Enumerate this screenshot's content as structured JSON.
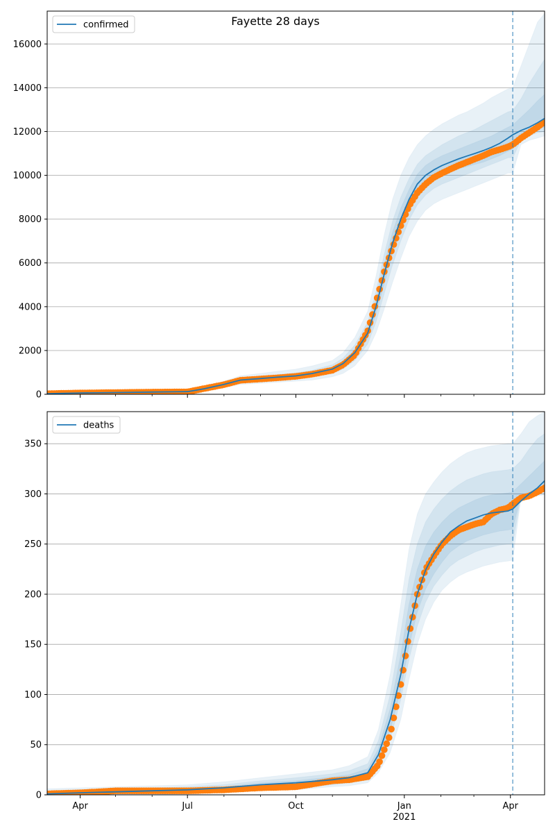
{
  "figure": {
    "title": "Fayette 28 days"
  },
  "colors": {
    "model": "#1f77b4",
    "observed": "#ff7f0e",
    "band": "#1f77b4",
    "grid": "#b0b0b0",
    "vline": "#1f77b4"
  },
  "chart_data": [
    {
      "type": "line",
      "panel": "top",
      "legend": [
        "confirmed"
      ],
      "legend_loc": "upper left",
      "xlim": [
        "2020-03-04",
        "2021-04-30"
      ],
      "ylim": [
        0,
        17500
      ],
      "yticks": [
        0,
        2000,
        4000,
        6000,
        8000,
        10000,
        12000,
        14000,
        16000
      ],
      "grid": "y",
      "vline": "2021-04-03",
      "series": [
        {
          "name": "confirmed",
          "role": "model",
          "x": [
            "2020-03-04",
            "2020-04-01",
            "2020-05-01",
            "2020-06-01",
            "2020-07-01",
            "2020-07-15",
            "2020-08-01",
            "2020-08-15",
            "2020-09-01",
            "2020-09-15",
            "2020-10-01",
            "2020-10-15",
            "2020-11-01",
            "2020-11-10",
            "2020-11-20",
            "2020-12-01",
            "2020-12-08",
            "2020-12-15",
            "2020-12-22",
            "2020-12-29",
            "2021-01-05",
            "2021-01-12",
            "2021-01-19",
            "2021-01-26",
            "2021-02-02",
            "2021-02-09",
            "2021-02-16",
            "2021-02-23",
            "2021-03-02",
            "2021-03-09",
            "2021-03-16",
            "2021-03-23",
            "2021-03-30",
            "2021-04-03",
            "2021-04-10",
            "2021-04-17",
            "2021-04-24",
            "2021-04-30"
          ],
          "y": [
            30,
            60,
            80,
            100,
            120,
            250,
            450,
            650,
            720,
            780,
            840,
            950,
            1150,
            1400,
            1900,
            2800,
            4000,
            5500,
            6900,
            8000,
            8900,
            9600,
            10000,
            10250,
            10450,
            10600,
            10750,
            10880,
            11000,
            11130,
            11280,
            11460,
            11700,
            11850,
            12050,
            12200,
            12400,
            12600
          ]
        },
        {
          "name": "",
          "role": "observed",
          "x": [
            "2020-03-04",
            "2020-04-01",
            "2020-05-01",
            "2020-06-01",
            "2020-07-01",
            "2020-07-15",
            "2020-08-01",
            "2020-08-15",
            "2020-09-01",
            "2020-09-15",
            "2020-10-01",
            "2020-10-15",
            "2020-11-01",
            "2020-11-10",
            "2020-11-20",
            "2020-12-01",
            "2020-12-08",
            "2020-12-15",
            "2020-12-22",
            "2020-12-29",
            "2021-01-05",
            "2021-01-12",
            "2021-01-19",
            "2021-01-26",
            "2021-02-02",
            "2021-02-09",
            "2021-02-16",
            "2021-02-23",
            "2021-03-02",
            "2021-03-09",
            "2021-03-16",
            "2021-03-23",
            "2021-03-30",
            "2021-04-03",
            "2021-04-10",
            "2021-04-17",
            "2021-04-24",
            "2021-04-30"
          ],
          "y": [
            30,
            60,
            80,
            100,
            110,
            260,
            440,
            640,
            700,
            750,
            820,
            920,
            1100,
            1350,
            1800,
            2900,
            4200,
            5600,
            6700,
            7700,
            8600,
            9200,
            9600,
            9900,
            10100,
            10280,
            10450,
            10600,
            10750,
            10900,
            11070,
            11180,
            11300,
            11400,
            11700,
            11950,
            12200,
            12450
          ]
        }
      ],
      "bands": [
        {
          "level": "outer",
          "upper": [
            60,
            90,
            120,
            150,
            180,
            350,
            600,
            850,
            950,
            1050,
            1150,
            1300,
            1550,
            1900,
            2600,
            3800,
            5400,
            7300,
            8900,
            10000,
            10800,
            11400,
            11800,
            12100,
            12350,
            12550,
            12750,
            12900,
            13100,
            13300,
            13550,
            13750,
            13950,
            14000,
            15000,
            16000,
            17000,
            17400
          ],
          "lower": [
            10,
            30,
            50,
            60,
            70,
            160,
            300,
            450,
            500,
            550,
            600,
            650,
            800,
            950,
            1300,
            2000,
            2800,
            3900,
            5100,
            6200,
            7200,
            7900,
            8400,
            8700,
            8900,
            9050,
            9200,
            9350,
            9500,
            9650,
            9800,
            9950,
            10100,
            10100,
            11400,
            11600,
            11700,
            11800
          ]
        },
        {
          "level": "mid",
          "upper": [
            45,
            75,
            100,
            125,
            150,
            300,
            520,
            750,
            830,
            900,
            980,
            1100,
            1350,
            1650,
            2250,
            3300,
            4700,
            6400,
            7900,
            9000,
            9850,
            10500,
            10900,
            11150,
            11400,
            11600,
            11800,
            11950,
            12100,
            12300,
            12500,
            12700,
            12900,
            12950,
            13500,
            14200,
            14800,
            15300
          ],
          "lower": [
            20,
            45,
            60,
            75,
            90,
            200,
            380,
            550,
            610,
            660,
            710,
            800,
            950,
            1150,
            1550,
            2300,
            3300,
            4600,
            5900,
            7000,
            7950,
            8650,
            9100,
            9400,
            9600,
            9750,
            9900,
            10050,
            10200,
            10350,
            10500,
            10650,
            10800,
            10800,
            11600,
            11800,
            11950,
            12000
          ]
        },
        {
          "level": "inner",
          "upper": [
            35,
            65,
            90,
            110,
            135,
            270,
            480,
            700,
            770,
            830,
            900,
            1020,
            1250,
            1520,
            2050,
            3050,
            4350,
            5950,
            7400,
            8500,
            9350,
            10050,
            10450,
            10700,
            10900,
            11050,
            11200,
            11350,
            11500,
            11650,
            11800,
            12000,
            12200,
            12300,
            12650,
            13000,
            13400,
            13700
          ],
          "lower": [
            25,
            55,
            70,
            90,
            105,
            230,
            420,
            600,
            670,
            730,
            780,
            880,
            1050,
            1280,
            1750,
            2550,
            3650,
            5050,
            6400,
            7500,
            8450,
            9150,
            9550,
            9800,
            10000,
            10150,
            10300,
            10400,
            10500,
            10600,
            10750,
            10900,
            11100,
            11200,
            11800,
            11950,
            12100,
            12200
          ]
        }
      ],
      "xticks_major": [
        "2020-04-01",
        "2020-07-01",
        "2020-10-01",
        "2021-01-01",
        "2021-04-01"
      ],
      "xtick_labels": [],
      "xticks_minor": [
        "2020-05-01",
        "2020-06-01",
        "2020-08-01",
        "2020-09-01",
        "2020-11-01",
        "2020-12-01",
        "2021-02-01",
        "2021-03-01"
      ]
    },
    {
      "type": "line",
      "panel": "bottom",
      "legend": [
        "deaths"
      ],
      "legend_loc": "upper left",
      "xlim": [
        "2020-03-04",
        "2021-04-30"
      ],
      "ylim": [
        0,
        382
      ],
      "yticks": [
        0,
        50,
        100,
        150,
        200,
        250,
        300,
        350
      ],
      "grid": "y",
      "vline": "2021-04-03",
      "series": [
        {
          "name": "deaths",
          "role": "model",
          "x": [
            "2020-03-04",
            "2020-04-01",
            "2020-05-01",
            "2020-06-01",
            "2020-07-01",
            "2020-08-01",
            "2020-09-01",
            "2020-10-01",
            "2020-11-01",
            "2020-11-15",
            "2020-12-01",
            "2020-12-10",
            "2020-12-20",
            "2020-12-29",
            "2021-01-05",
            "2021-01-12",
            "2021-01-19",
            "2021-01-26",
            "2021-02-02",
            "2021-02-09",
            "2021-02-16",
            "2021-02-23",
            "2021-03-02",
            "2021-03-09",
            "2021-03-16",
            "2021-03-23",
            "2021-03-30",
            "2021-04-03",
            "2021-04-10",
            "2021-04-17",
            "2021-04-24",
            "2021-04-30"
          ],
          "y": [
            1,
            2,
            3,
            4,
            5,
            7,
            10,
            12,
            15,
            17,
            22,
            40,
            75,
            120,
            165,
            200,
            224,
            240,
            252,
            262,
            268,
            273,
            276,
            279,
            281,
            282,
            283,
            285,
            293,
            300,
            306,
            313
          ]
        },
        {
          "name": "",
          "role": "observed",
          "x": [
            "2020-03-04",
            "2020-04-01",
            "2020-05-01",
            "2020-06-01",
            "2020-07-01",
            "2020-08-01",
            "2020-09-01",
            "2020-10-01",
            "2020-11-01",
            "2020-11-15",
            "2020-12-01",
            "2020-12-10",
            "2020-12-20",
            "2020-12-29",
            "2021-01-05",
            "2021-01-12",
            "2021-01-19",
            "2021-01-26",
            "2021-02-02",
            "2021-02-09",
            "2021-02-16",
            "2021-02-23",
            "2021-03-02",
            "2021-03-09",
            "2021-03-16",
            "2021-03-23",
            "2021-03-30",
            "2021-04-03",
            "2021-04-10",
            "2021-04-17",
            "2021-04-24",
            "2021-04-30"
          ],
          "y": [
            1,
            2,
            4,
            4,
            4,
            5,
            7,
            8,
            14,
            15,
            18,
            30,
            60,
            110,
            160,
            200,
            225,
            238,
            250,
            258,
            264,
            267,
            270,
            272,
            280,
            284,
            286,
            290,
            296,
            298,
            302,
            306
          ]
        }
      ],
      "bands": [
        {
          "level": "outer",
          "upper": [
            6,
            7,
            8,
            9,
            10,
            13,
            17,
            21,
            25,
            29,
            38,
            65,
            120,
            190,
            245,
            280,
            300,
            312,
            322,
            330,
            336,
            341,
            344,
            346,
            348,
            349,
            350,
            350,
            360,
            372,
            378,
            382
          ],
          "lower": [
            0,
            0,
            0,
            0,
            1,
            2,
            4,
            5,
            8,
            9,
            12,
            22,
            42,
            75,
            115,
            150,
            175,
            192,
            204,
            212,
            218,
            222,
            225,
            228,
            230,
            232,
            233,
            234,
            296,
            297,
            298,
            299
          ]
        },
        {
          "level": "mid",
          "upper": [
            4,
            5,
            6,
            7,
            8,
            10,
            14,
            17,
            21,
            24,
            31,
            54,
            100,
            162,
            215,
            250,
            272,
            285,
            295,
            303,
            309,
            314,
            317,
            320,
            322,
            323,
            324,
            325,
            333,
            345,
            355,
            360
          ],
          "lower": [
            0,
            1,
            1,
            2,
            2,
            3,
            6,
            7,
            10,
            12,
            15,
            28,
            55,
            95,
            135,
            168,
            192,
            208,
            219,
            228,
            234,
            238,
            242,
            245,
            247,
            249,
            250,
            250,
            298,
            300,
            302,
            303
          ]
        },
        {
          "level": "inner",
          "upper": [
            2,
            3,
            4,
            5,
            6,
            8,
            12,
            14,
            18,
            20,
            26,
            46,
            86,
            140,
            190,
            225,
            248,
            262,
            272,
            280,
            286,
            290,
            294,
            297,
            299,
            300,
            301,
            302,
            310,
            318,
            326,
            333
          ],
          "lower": [
            0,
            1,
            2,
            3,
            3,
            5,
            8,
            10,
            12,
            14,
            18,
            34,
            64,
            105,
            148,
            182,
            205,
            220,
            232,
            242,
            248,
            253,
            256,
            259,
            261,
            263,
            264,
            265,
            299,
            302,
            305,
            308
          ]
        }
      ],
      "xticks_major": [
        "2020-04-01",
        "2020-07-01",
        "2020-10-01",
        "2021-01-01",
        "2021-04-01"
      ],
      "xtick_labels": [
        "Apr",
        "Jul",
        "Oct",
        "Jan\n2021",
        "Apr"
      ],
      "xticks_minor": [
        "2020-05-01",
        "2020-06-01",
        "2020-08-01",
        "2020-09-01",
        "2020-11-01",
        "2020-12-01",
        "2021-02-01",
        "2021-03-01"
      ]
    }
  ]
}
